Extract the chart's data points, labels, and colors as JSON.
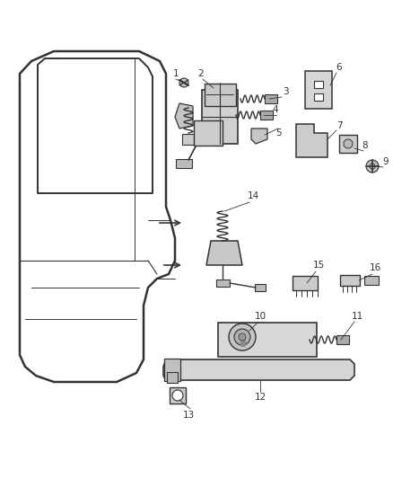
{
  "bg_color": "#ffffff",
  "lc": "#555555",
  "dc": "#333333",
  "figsize": [
    4.38,
    5.33
  ],
  "dpi": 100
}
